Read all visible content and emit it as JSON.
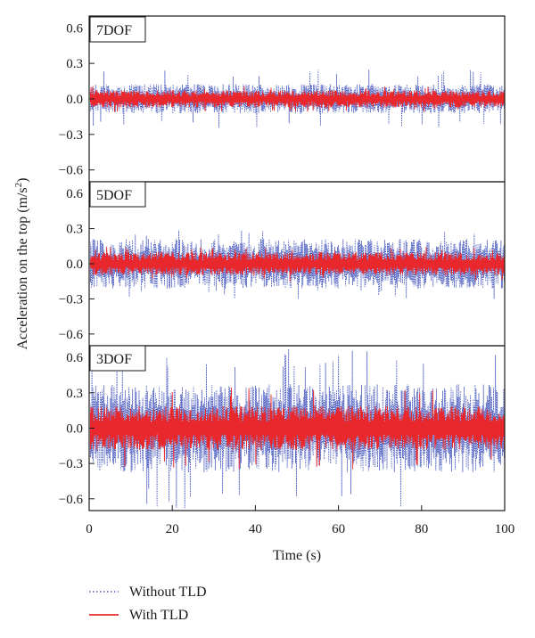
{
  "chart_data": {
    "type": "line",
    "xlabel": "Time (s)",
    "ylabel": "Acceleration on the top (m/s",
    "ylabel_sup": "2",
    "ylabel_end": ")",
    "xlim": [
      0,
      100
    ],
    "xticks": [
      0,
      20,
      40,
      60,
      80,
      100
    ],
    "xtick_labels": [
      "0",
      "20",
      "40",
      "60",
      "80",
      "100"
    ],
    "legend_position": "bottom-left",
    "panels": [
      {
        "label": "7DOF",
        "ylim": [
          -0.7,
          0.7
        ],
        "yticks": [
          0.6,
          0.3,
          0.0,
          -0.3,
          -0.6
        ],
        "ytick_labels": [
          "0.6",
          "0.3",
          "0.0",
          "−0.3",
          "−0.6"
        ],
        "series": [
          {
            "name": "Without TLD",
            "amplitude_typical": 0.1,
            "amplitude_peak": 0.25
          },
          {
            "name": "With TLD",
            "amplitude_typical": 0.06,
            "amplitude_peak": 0.11
          }
        ]
      },
      {
        "label": "5DOF",
        "ylim": [
          -0.7,
          0.7
        ],
        "yticks": [
          0.6,
          0.3,
          0.0,
          -0.3,
          -0.6
        ],
        "ytick_labels": [
          "0.6",
          "0.3",
          "0.0",
          "−0.3",
          "−0.6"
        ],
        "series": [
          {
            "name": "Without TLD",
            "amplitude_typical": 0.17,
            "amplitude_peak": 0.3
          },
          {
            "name": "With TLD",
            "amplitude_typical": 0.08,
            "amplitude_peak": 0.15
          }
        ]
      },
      {
        "label": "3DOF",
        "ylim": [
          -0.7,
          0.7
        ],
        "yticks": [
          0.6,
          0.3,
          0.0,
          -0.3,
          -0.6
        ],
        "ytick_labels": [
          "0.6",
          "0.3",
          "0.0",
          "−0.3",
          "−0.6"
        ],
        "series": [
          {
            "name": "Without TLD",
            "amplitude_typical": 0.3,
            "amplitude_peak": 0.68
          },
          {
            "name": "With TLD",
            "amplitude_typical": 0.15,
            "amplitude_peak": 0.35
          }
        ]
      }
    ],
    "legend": [
      {
        "name": "Without TLD",
        "color": "#4a5bbf",
        "style": "dotted"
      },
      {
        "name": "With TLD",
        "color": "#e8282c",
        "style": "solid"
      }
    ]
  }
}
